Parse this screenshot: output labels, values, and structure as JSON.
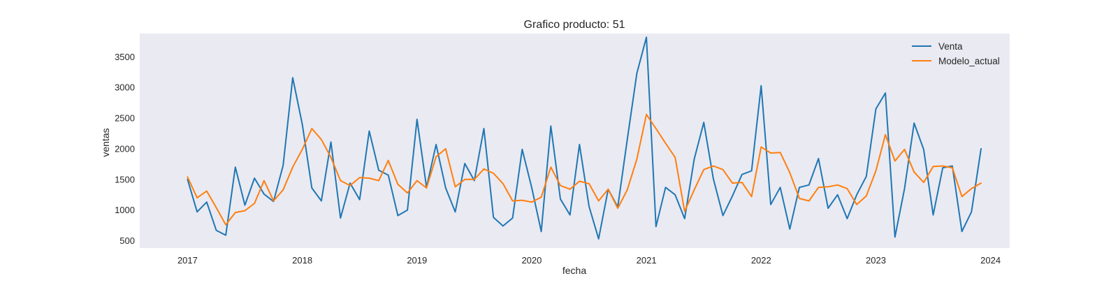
{
  "chart_data": {
    "type": "line",
    "title": "Grafico producto: 51",
    "xlabel": "fecha",
    "ylabel": "ventas",
    "x_ticks": [
      "2017",
      "2018",
      "2019",
      "2020",
      "2021",
      "2022",
      "2023",
      "2024"
    ],
    "y_ticks": [
      500,
      1000,
      1500,
      2000,
      2500,
      3000,
      3500
    ],
    "xlim": [
      "2016-08",
      "2024-03"
    ],
    "ylim": [
      380,
      3880
    ],
    "grid": false,
    "background_color": "#eaeaf2",
    "legend_position": "top-right",
    "x": [
      "2017-01",
      "2017-02",
      "2017-03",
      "2017-04",
      "2017-05",
      "2017-06",
      "2017-07",
      "2017-08",
      "2017-09",
      "2017-10",
      "2017-11",
      "2017-12",
      "2018-01",
      "2018-02",
      "2018-03",
      "2018-04",
      "2018-05",
      "2018-06",
      "2018-07",
      "2018-08",
      "2018-09",
      "2018-10",
      "2018-11",
      "2018-12",
      "2019-01",
      "2019-02",
      "2019-03",
      "2019-04",
      "2019-05",
      "2019-06",
      "2019-07",
      "2019-08",
      "2019-09",
      "2019-10",
      "2019-11",
      "2019-12",
      "2020-01",
      "2020-02",
      "2020-03",
      "2020-04",
      "2020-05",
      "2020-06",
      "2020-07",
      "2020-08",
      "2020-09",
      "2020-10",
      "2020-11",
      "2020-12",
      "2021-01",
      "2021-02",
      "2021-03",
      "2021-04",
      "2021-05",
      "2021-06",
      "2021-07",
      "2021-08",
      "2021-09",
      "2021-10",
      "2021-11",
      "2021-12",
      "2022-01",
      "2022-02",
      "2022-03",
      "2022-04",
      "2022-05",
      "2022-06",
      "2022-07",
      "2022-08",
      "2022-09",
      "2022-10",
      "2022-11",
      "2022-12",
      "2023-01",
      "2023-02",
      "2023-03",
      "2023-04",
      "2023-05",
      "2023-06",
      "2023-07",
      "2023-08",
      "2023-09",
      "2023-10",
      "2023-11",
      "2023-12"
    ],
    "series": [
      {
        "name": "Venta",
        "color": "#1f77b4",
        "values": [
          1500,
          970,
          1130,
          670,
          590,
          1700,
          1080,
          1520,
          1260,
          1140,
          1730,
          3160,
          2400,
          1360,
          1150,
          2110,
          870,
          1440,
          1170,
          2290,
          1650,
          1570,
          910,
          1000,
          2480,
          1370,
          2070,
          1360,
          970,
          1760,
          1480,
          2330,
          880,
          740,
          870,
          1990,
          1370,
          650,
          2370,
          1180,
          920,
          2070,
          1060,
          530,
          1340,
          1050,
          2150,
          3230,
          3820,
          730,
          1370,
          1250,
          860,
          1830,
          2430,
          1510,
          910,
          1230,
          1580,
          1640,
          3030,
          1090,
          1370,
          690,
          1370,
          1410,
          1840,
          1030,
          1250,
          860,
          1250,
          1550,
          2650,
          2910,
          560,
          1350,
          2420,
          1990,
          920,
          1690,
          1720,
          650,
          970,
          2000
        ]
      },
      {
        "name": "Modelo_actual",
        "color": "#ff7f0e",
        "values": [
          1540,
          1200,
          1310,
          1040,
          760,
          960,
          990,
          1110,
          1480,
          1150,
          1330,
          1700,
          1990,
          2330,
          2150,
          1860,
          1480,
          1400,
          1530,
          1520,
          1480,
          1810,
          1420,
          1280,
          1480,
          1360,
          1870,
          2000,
          1380,
          1500,
          1500,
          1670,
          1600,
          1430,
          1150,
          1160,
          1130,
          1210,
          1700,
          1400,
          1340,
          1470,
          1430,
          1150,
          1340,
          1030,
          1330,
          1830,
          2560,
          2330,
          2090,
          1860,
          980,
          1330,
          1660,
          1720,
          1660,
          1440,
          1450,
          1220,
          2030,
          1930,
          1940,
          1610,
          1190,
          1150,
          1370,
          1380,
          1410,
          1350,
          1090,
          1230,
          1640,
          2230,
          1800,
          1990,
          1620,
          1450,
          1710,
          1720,
          1690,
          1220,
          1350,
          1440
        ]
      }
    ]
  }
}
